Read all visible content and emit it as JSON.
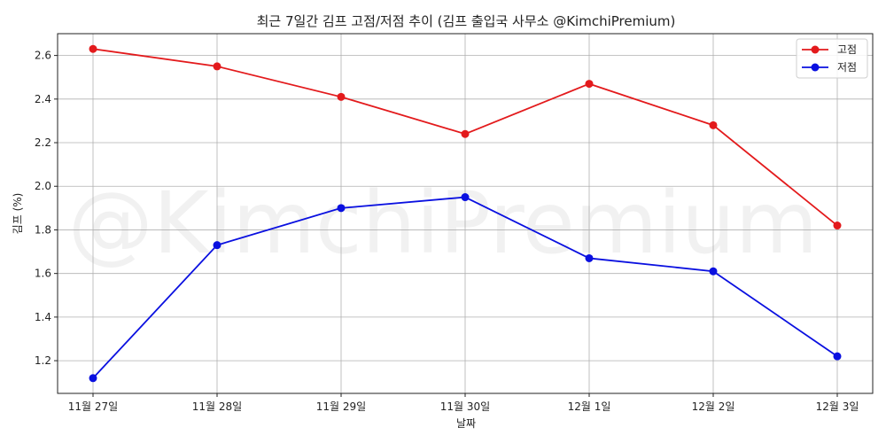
{
  "chart_data": {
    "type": "line",
    "title": "최근 7일간 김프 고점/저점 추이 (김프 출입국 사무소 @KimchiPremium)",
    "xlabel": "날짜",
    "ylabel": "김프 (%)",
    "categories": [
      "11월 27일",
      "11월 28일",
      "11월 29일",
      "11월 30일",
      "12월 1일",
      "12월 2일",
      "12월 3일"
    ],
    "series": [
      {
        "name": "고점",
        "color": "#e31a1c",
        "values": [
          2.63,
          2.55,
          2.41,
          2.24,
          2.47,
          2.28,
          1.82
        ]
      },
      {
        "name": "저점",
        "color": "#0a10e0",
        "values": [
          1.12,
          1.73,
          1.9,
          1.95,
          1.67,
          1.61,
          1.22
        ]
      }
    ],
    "ylim": [
      1.05,
      2.7
    ],
    "yticks": [
      1.2,
      1.4,
      1.6,
      1.8,
      2.0,
      2.2,
      2.4,
      2.6
    ],
    "ytick_labels": [
      "1.2",
      "1.4",
      "1.6",
      "1.8",
      "2.0",
      "2.2",
      "2.4",
      "2.6"
    ],
    "grid": true,
    "legend_position": "top-right",
    "watermark": "@KimchiPremium"
  }
}
